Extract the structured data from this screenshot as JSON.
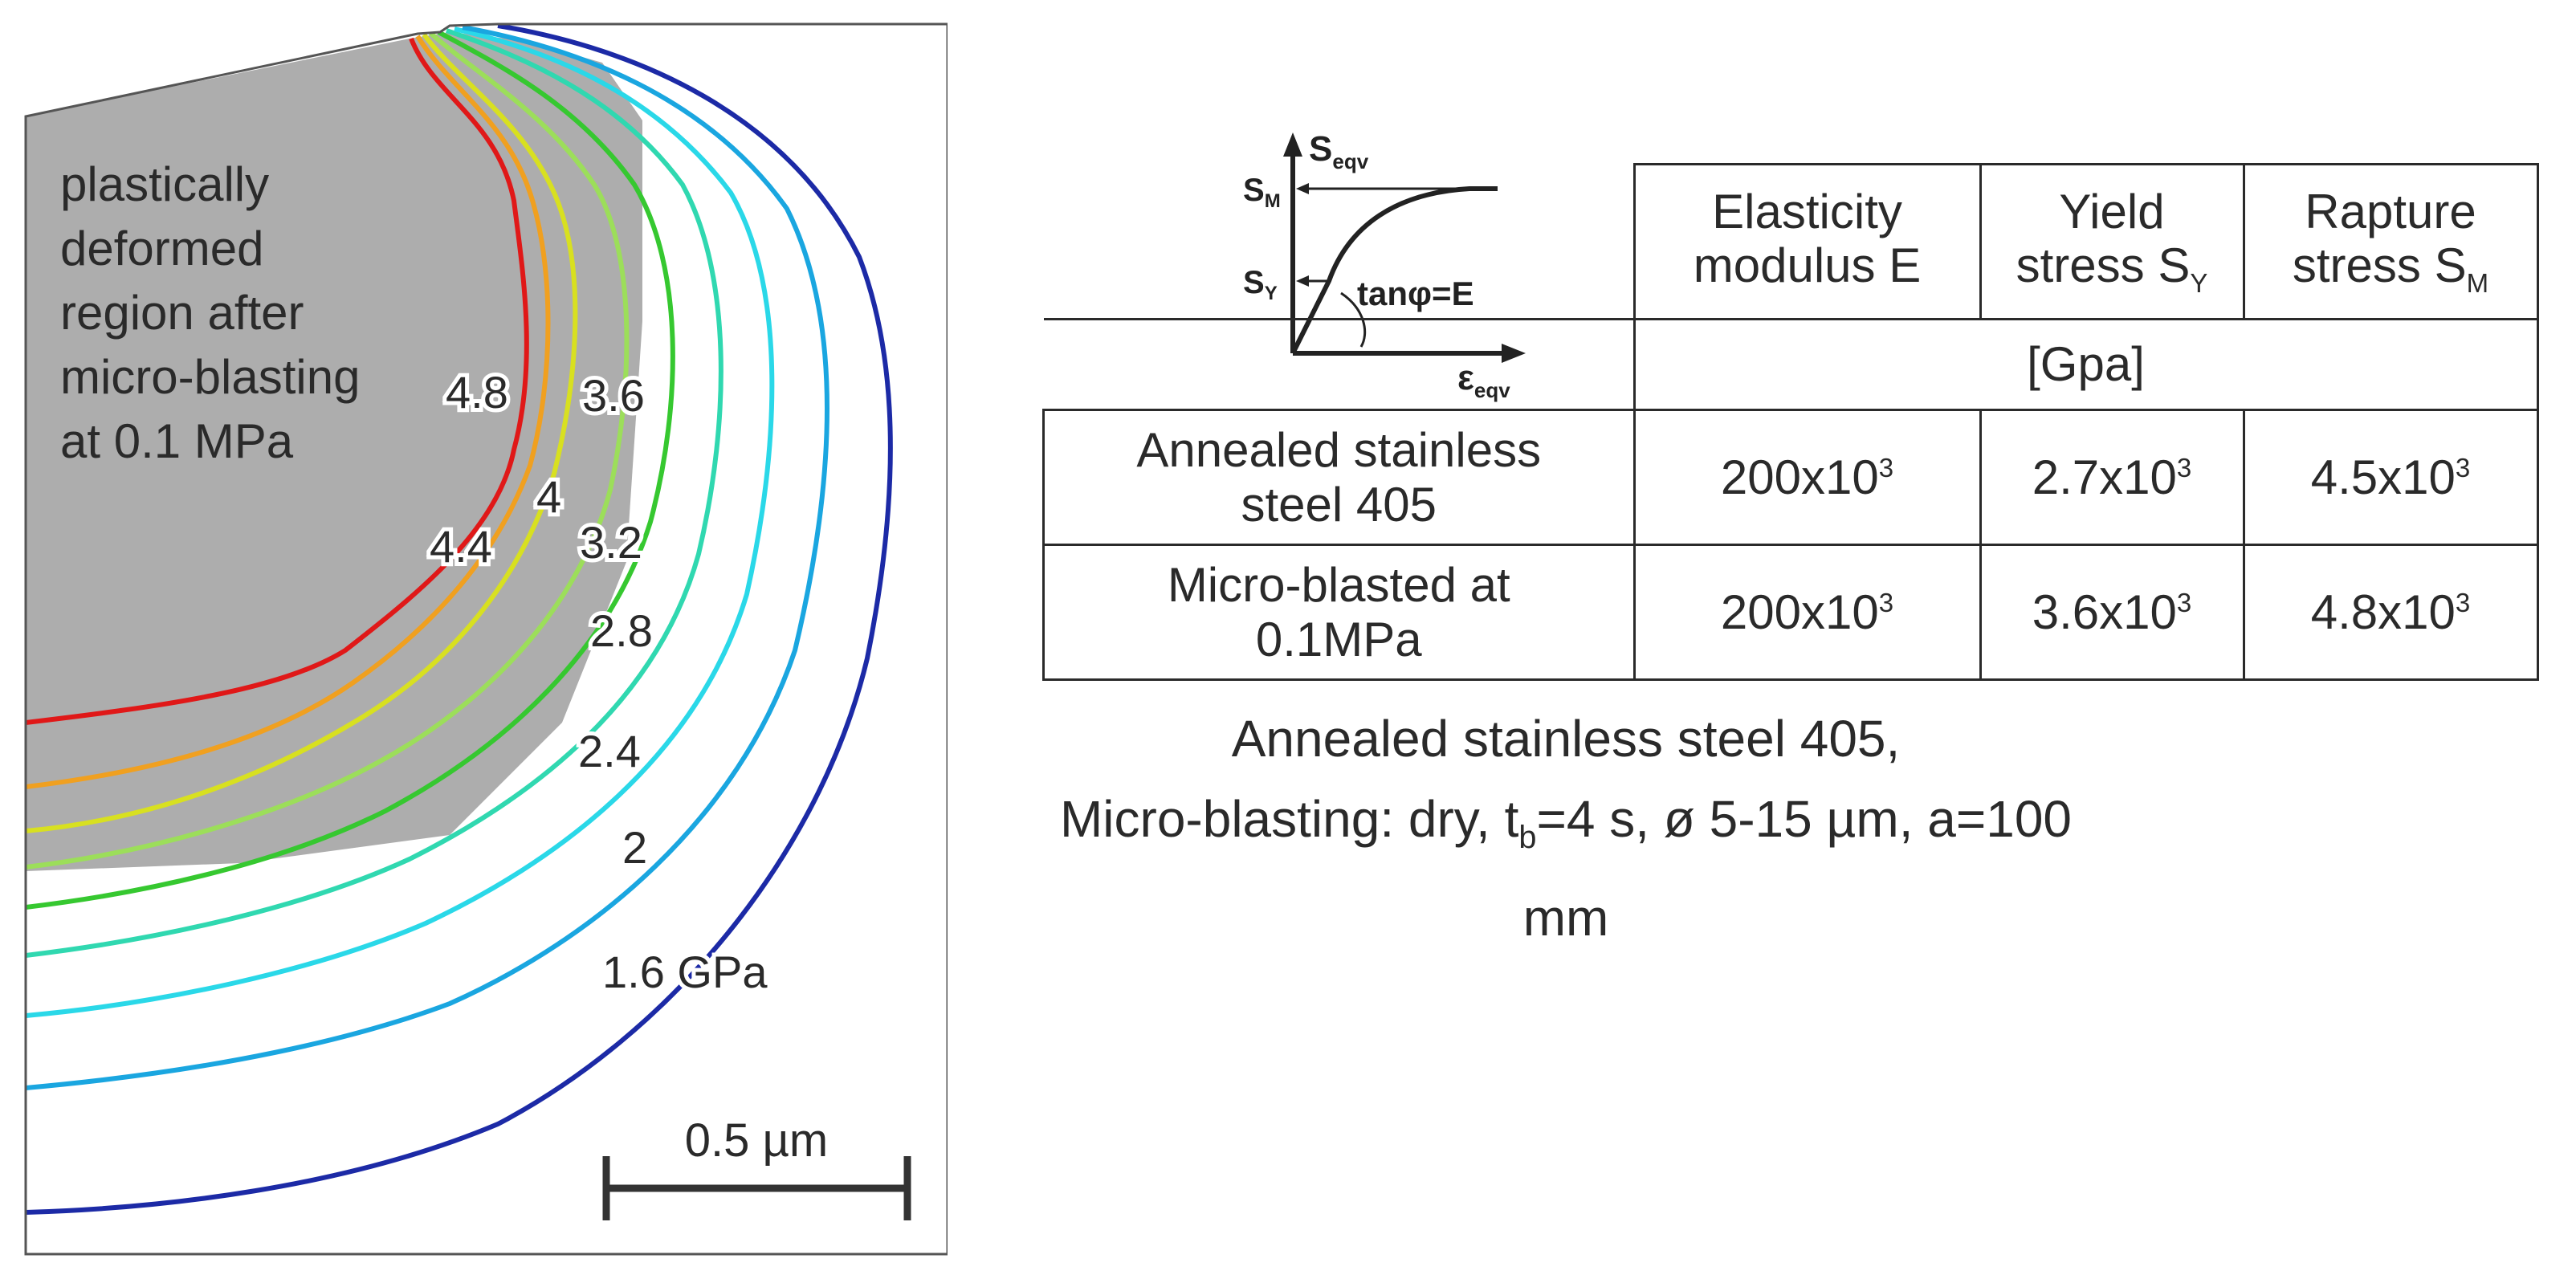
{
  "region": {
    "lines": [
      "plastically",
      "deformed",
      "region after",
      "micro-blasting",
      "at 0.1 MPa"
    ]
  },
  "contours": [
    {
      "label": "4.8",
      "color": "#e01818"
    },
    {
      "label": "4.4",
      "color": "#f0a020"
    },
    {
      "label": "4",
      "color": "#d8e020"
    },
    {
      "label": "3.6",
      "color": "#9cde5a"
    },
    {
      "label": "3.2",
      "color": "#36c830"
    },
    {
      "label": "2.8",
      "color": "#30d8b0"
    },
    {
      "label": "2.4",
      "color": "#2ad8e8"
    },
    {
      "label": "2",
      "color": "#1aa6e0"
    },
    {
      "label": "1.6 GPa",
      "color": "#1c2aa6"
    }
  ],
  "scale_bar": {
    "label": "0.5 µm",
    "value_um": 0.5
  },
  "inset": {
    "s_eqv": "S",
    "s_eqv_sub": "eqv",
    "s_m": "S",
    "s_m_sub": "M",
    "s_y": "S",
    "s_y_sub": "Y",
    "tan": "tanφ=E",
    "eps": "ε",
    "eps_sub": "eqv"
  },
  "table": {
    "headers": [
      {
        "l1": "Elasticity",
        "l2": "modulus E",
        "sub": ""
      },
      {
        "l1": "Yield",
        "l2": "stress S",
        "sub": "Y"
      },
      {
        "l1": "Rapture",
        "l2": "stress S",
        "sub": "M"
      }
    ],
    "unit": "[Gpa]",
    "rows": [
      {
        "name_l1": "Annealed stainless",
        "name_l2": "steel 405",
        "cells": [
          {
            "base": "200x10",
            "exp": "3"
          },
          {
            "base": "2.7x10",
            "exp": "3"
          },
          {
            "base": "4.5x10",
            "exp": "3"
          }
        ]
      },
      {
        "name_l1": "Micro-blasted at",
        "name_l2": "0.1MPa",
        "cells": [
          {
            "base": "200x10",
            "exp": "3"
          },
          {
            "base": "3.6x10",
            "exp": "3"
          },
          {
            "base": "4.8x10",
            "exp": "3"
          }
        ]
      }
    ]
  },
  "caption": {
    "line1": "Annealed stainless steel  405,",
    "line2_a": "Micro-blasting: dry, t",
    "line2_sub": "b",
    "line2_b": "=4 s, ø 5-15 µm, a=100 mm"
  }
}
